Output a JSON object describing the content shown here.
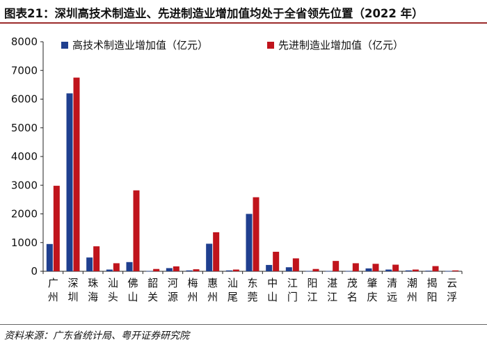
{
  "title": "图表21：深圳高技术制造业、先进制造业增加值均处于全省领先位置（2022 年）",
  "source": "资料来源：广东省统计局、粤开证券研究院",
  "colors": {
    "series1": "#1f3f8f",
    "series2": "#c0141c",
    "title_rule": "#9b2b2b"
  },
  "chart_data": {
    "type": "bar",
    "categories": [
      "广州",
      "深圳",
      "珠海",
      "汕头",
      "佛山",
      "韶关",
      "河源",
      "梅州",
      "惠州",
      "汕尾",
      "东莞",
      "中山",
      "江门",
      "阳江",
      "湛江",
      "茂名",
      "肇庆",
      "清远",
      "潮州",
      "揭阳",
      "云浮"
    ],
    "series": [
      {
        "name": "高技术制造业增加值（亿元）",
        "values": [
          950,
          6200,
          480,
          60,
          320,
          10,
          110,
          30,
          960,
          30,
          2000,
          220,
          140,
          10,
          10,
          10,
          100,
          60,
          30,
          20,
          10
        ]
      },
      {
        "name": "先进制造业增加值（亿元）",
        "values": [
          2980,
          6750,
          870,
          280,
          2820,
          80,
          170,
          70,
          1360,
          60,
          2580,
          680,
          450,
          80,
          360,
          280,
          260,
          230,
          60,
          180,
          30
        ]
      }
    ],
    "ylim": [
      0,
      8000
    ],
    "yticks": [
      0,
      1000,
      2000,
      3000,
      4000,
      5000,
      6000,
      7000,
      8000
    ],
    "xlabel": "",
    "ylabel": "",
    "grid": false,
    "legend_position": "top"
  }
}
